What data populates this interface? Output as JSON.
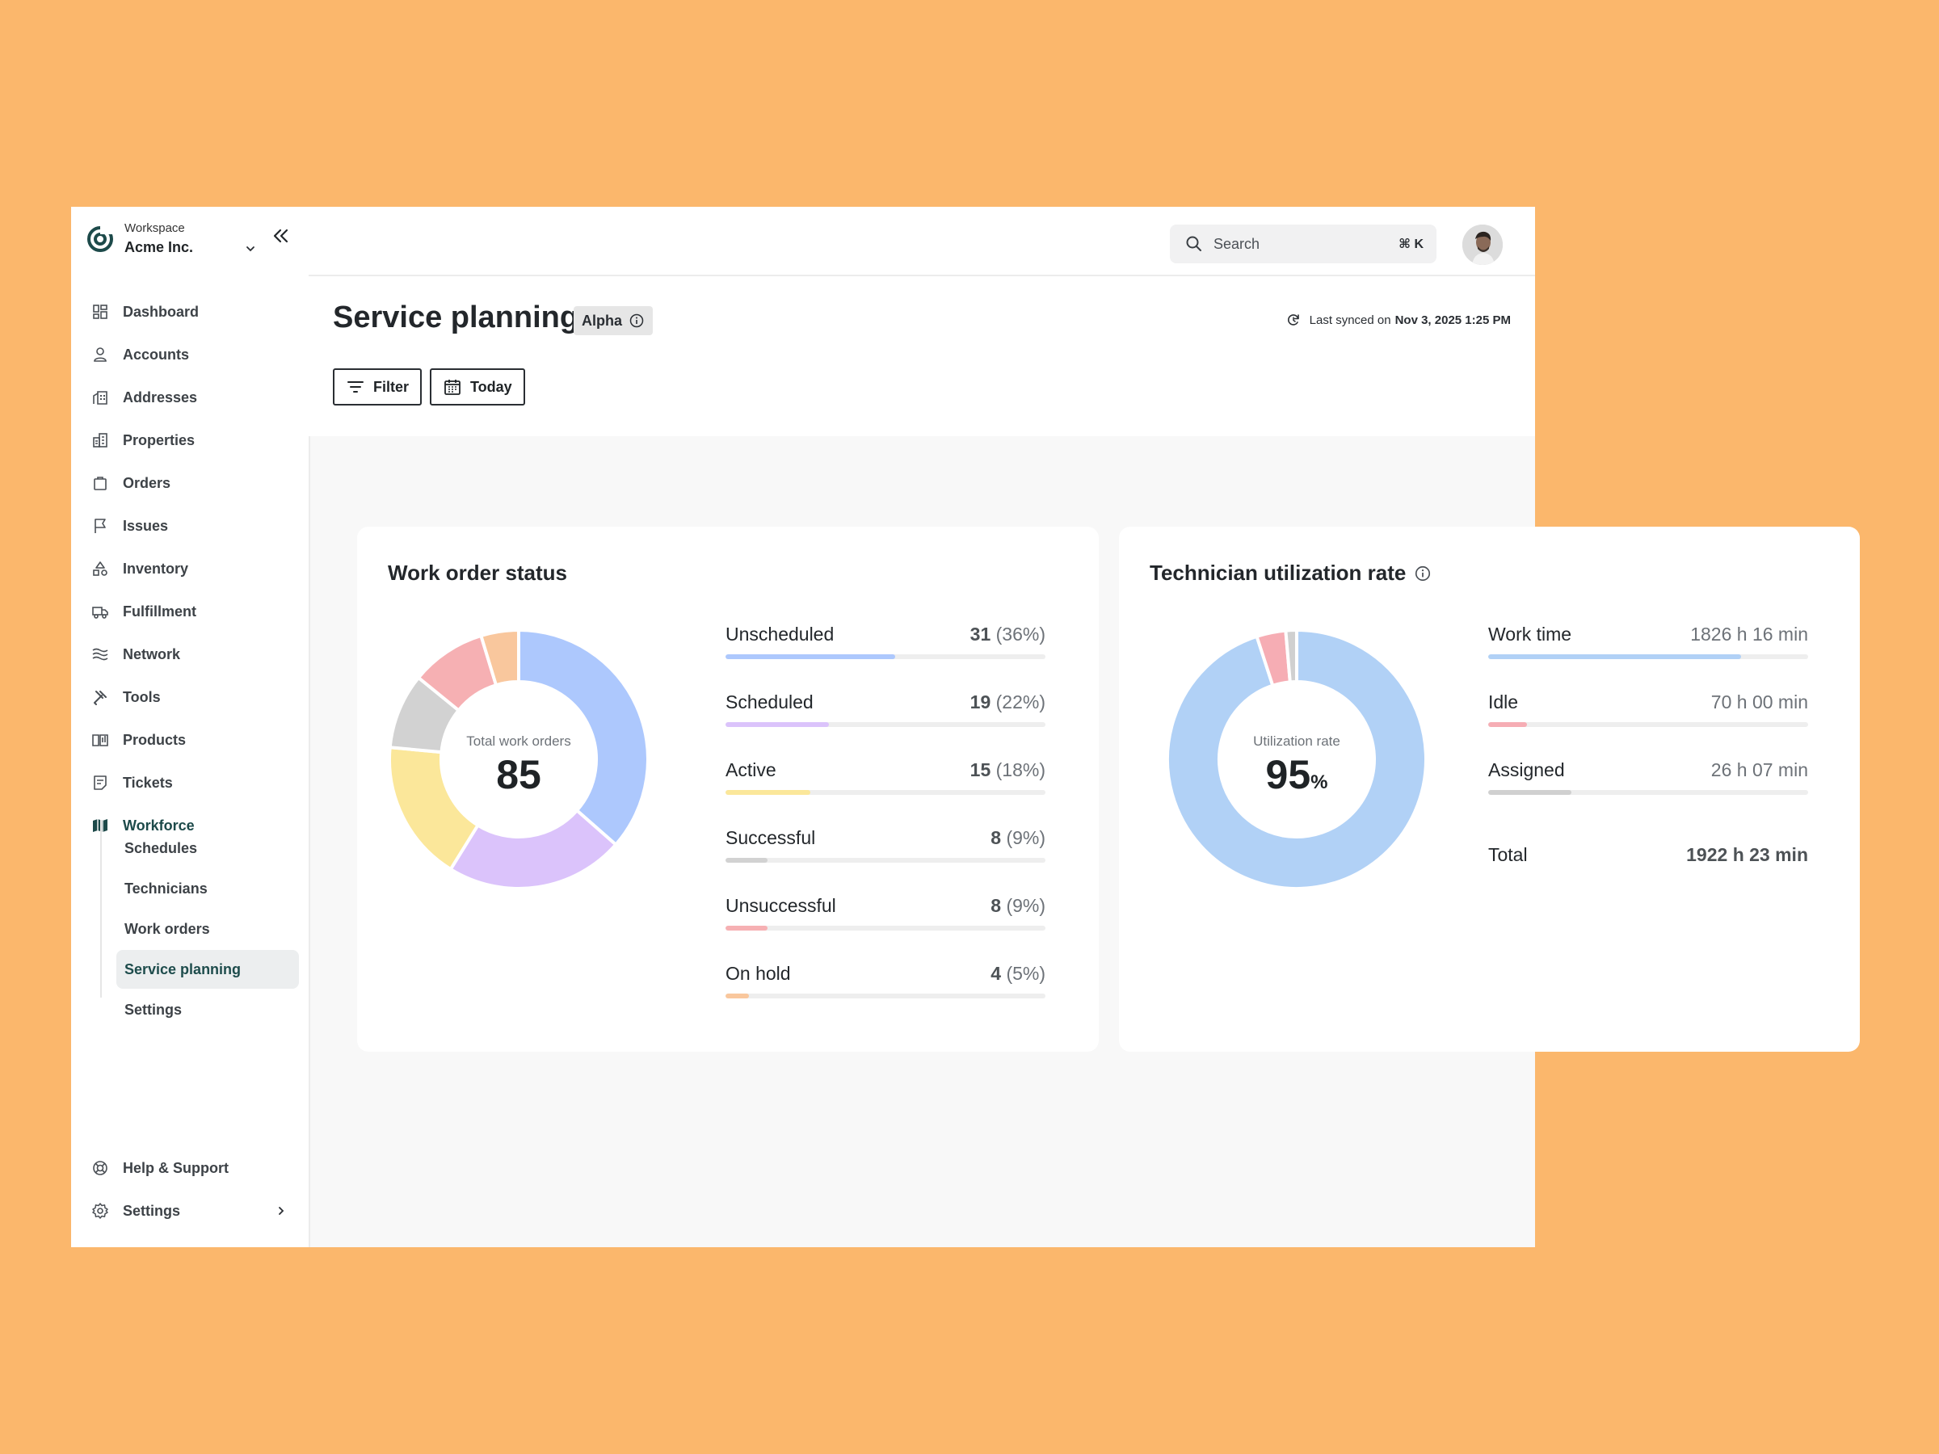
{
  "workspace": {
    "caption": "Workspace",
    "name": "Acme Inc."
  },
  "nav": [
    {
      "label": "Dashboard",
      "icon": "dashboard-icon"
    },
    {
      "label": "Accounts",
      "icon": "user-icon"
    },
    {
      "label": "Addresses",
      "icon": "building-icon"
    },
    {
      "label": "Properties",
      "icon": "properties-icon"
    },
    {
      "label": "Orders",
      "icon": "bag-icon"
    },
    {
      "label": "Issues",
      "icon": "flag-icon"
    },
    {
      "label": "Inventory",
      "icon": "shapes-icon"
    },
    {
      "label": "Fulfillment",
      "icon": "truck-icon"
    },
    {
      "label": "Network",
      "icon": "waves-icon"
    },
    {
      "label": "Tools",
      "icon": "tools-icon"
    },
    {
      "label": "Products",
      "icon": "book-icon"
    },
    {
      "label": "Tickets",
      "icon": "ticket-icon"
    },
    {
      "label": "Workforce",
      "icon": "map-icon"
    }
  ],
  "workforce_sub": [
    "Schedules",
    "Technicians",
    "Work orders",
    "Service planning",
    "Settings"
  ],
  "bottom_nav": {
    "help": "Help & Support",
    "settings": "Settings"
  },
  "search": {
    "placeholder": "Search",
    "shortcut": "⌘ K"
  },
  "page": {
    "title": "Service planning",
    "badge": "Alpha",
    "sync_prefix": "Last synced on",
    "sync_time": "Nov 3, 2025 1:25 PM",
    "filter_label": "Filter",
    "date_label": "Today"
  },
  "colors": {
    "accent": "#1d4a4a",
    "blue": "#adc8fd",
    "purple": "#dbc3fb",
    "yellow": "#fbe79a",
    "gray": "#d2d2d2",
    "red": "#f6b0b3",
    "orange": "#f9c79d",
    "util_blue": "#b1d1f6",
    "util_red": "#f6adb4",
    "util_gray": "#d0d0d0"
  },
  "work_order_status": {
    "title": "Work order status",
    "center_label": "Total work orders",
    "center_value": "85",
    "rows": [
      {
        "label": "Unscheduled",
        "count": "31",
        "pct": "(36%)",
        "value": 0.36,
        "color": "#adc8fd"
      },
      {
        "label": "Scheduled",
        "count": "19",
        "pct": "(22%)",
        "value": 0.22,
        "color": "#dbc3fb"
      },
      {
        "label": "Active",
        "count": "15",
        "pct": "(18%)",
        "value": 0.18,
        "color": "#fbe79a"
      },
      {
        "label": "Successful",
        "count": "8",
        "pct": "(9%)",
        "value": 0.09,
        "color": "#d2d2d2"
      },
      {
        "label": "Unsuccessful",
        "count": "8",
        "pct": "(9%)",
        "value": 0.09,
        "color": "#f6b0b3"
      },
      {
        "label": "On hold",
        "count": "4",
        "pct": "(5%)",
        "value": 0.05,
        "color": "#f9c79d"
      }
    ]
  },
  "utilization": {
    "title": "Technician utilization rate",
    "center_label": "Utilization rate",
    "center_value": "95",
    "center_unit": "%",
    "rows": [
      {
        "label": "Work time",
        "value_text": "1826 h 16 min",
        "value": 0.95,
        "color": "#b1d1f6"
      },
      {
        "label": "Idle",
        "value_text": "70 h 00 min",
        "value": 0.036,
        "color": "#f6adb4"
      },
      {
        "label": "Assigned",
        "value_text": "26 h 07 min",
        "value": 0.014,
        "color": "#d0d0d0"
      }
    ],
    "total_label": "Total",
    "total_value": "1922 h 23 min"
  },
  "chart_data": [
    {
      "type": "pie",
      "title": "Work order status",
      "categories": [
        "Unscheduled",
        "Scheduled",
        "Active",
        "Successful",
        "Unsuccessful",
        "On hold"
      ],
      "values": [
        31,
        19,
        15,
        8,
        8,
        4
      ]
    },
    {
      "type": "pie",
      "title": "Technician utilization rate",
      "categories": [
        "Work time",
        "Idle",
        "Assigned"
      ],
      "values": [
        1826.27,
        70.0,
        26.12
      ]
    }
  ]
}
